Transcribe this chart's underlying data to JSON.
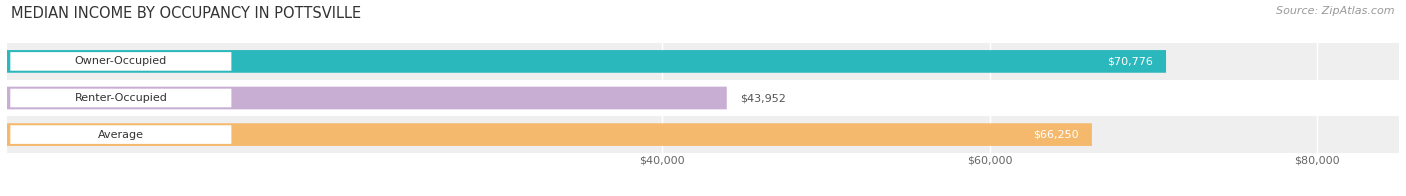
{
  "title": "MEDIAN INCOME BY OCCUPANCY IN POTTSVILLE",
  "source": "Source: ZipAtlas.com",
  "categories": [
    "Owner-Occupied",
    "Renter-Occupied",
    "Average"
  ],
  "values": [
    70776,
    43952,
    66250
  ],
  "bar_colors": [
    "#2ab8bc",
    "#c9aed4",
    "#f5b96e"
  ],
  "bar_labels": [
    "$70,776",
    "$43,952",
    "$66,250"
  ],
  "value_inside": [
    true,
    false,
    true
  ],
  "value_color_inside": "white",
  "value_color_outside": "#555555",
  "xlim": [
    0,
    85000
  ],
  "xticks": [
    40000,
    60000,
    80000
  ],
  "xticklabels": [
    "$40,000",
    "$60,000",
    "$80,000"
  ],
  "row_bg_colors": [
    "#efefef",
    "#ffffff",
    "#efefef"
  ],
  "bar_height": 0.62,
  "title_fontsize": 10.5,
  "source_fontsize": 8,
  "label_fontsize": 8,
  "value_fontsize": 8,
  "tick_fontsize": 8
}
